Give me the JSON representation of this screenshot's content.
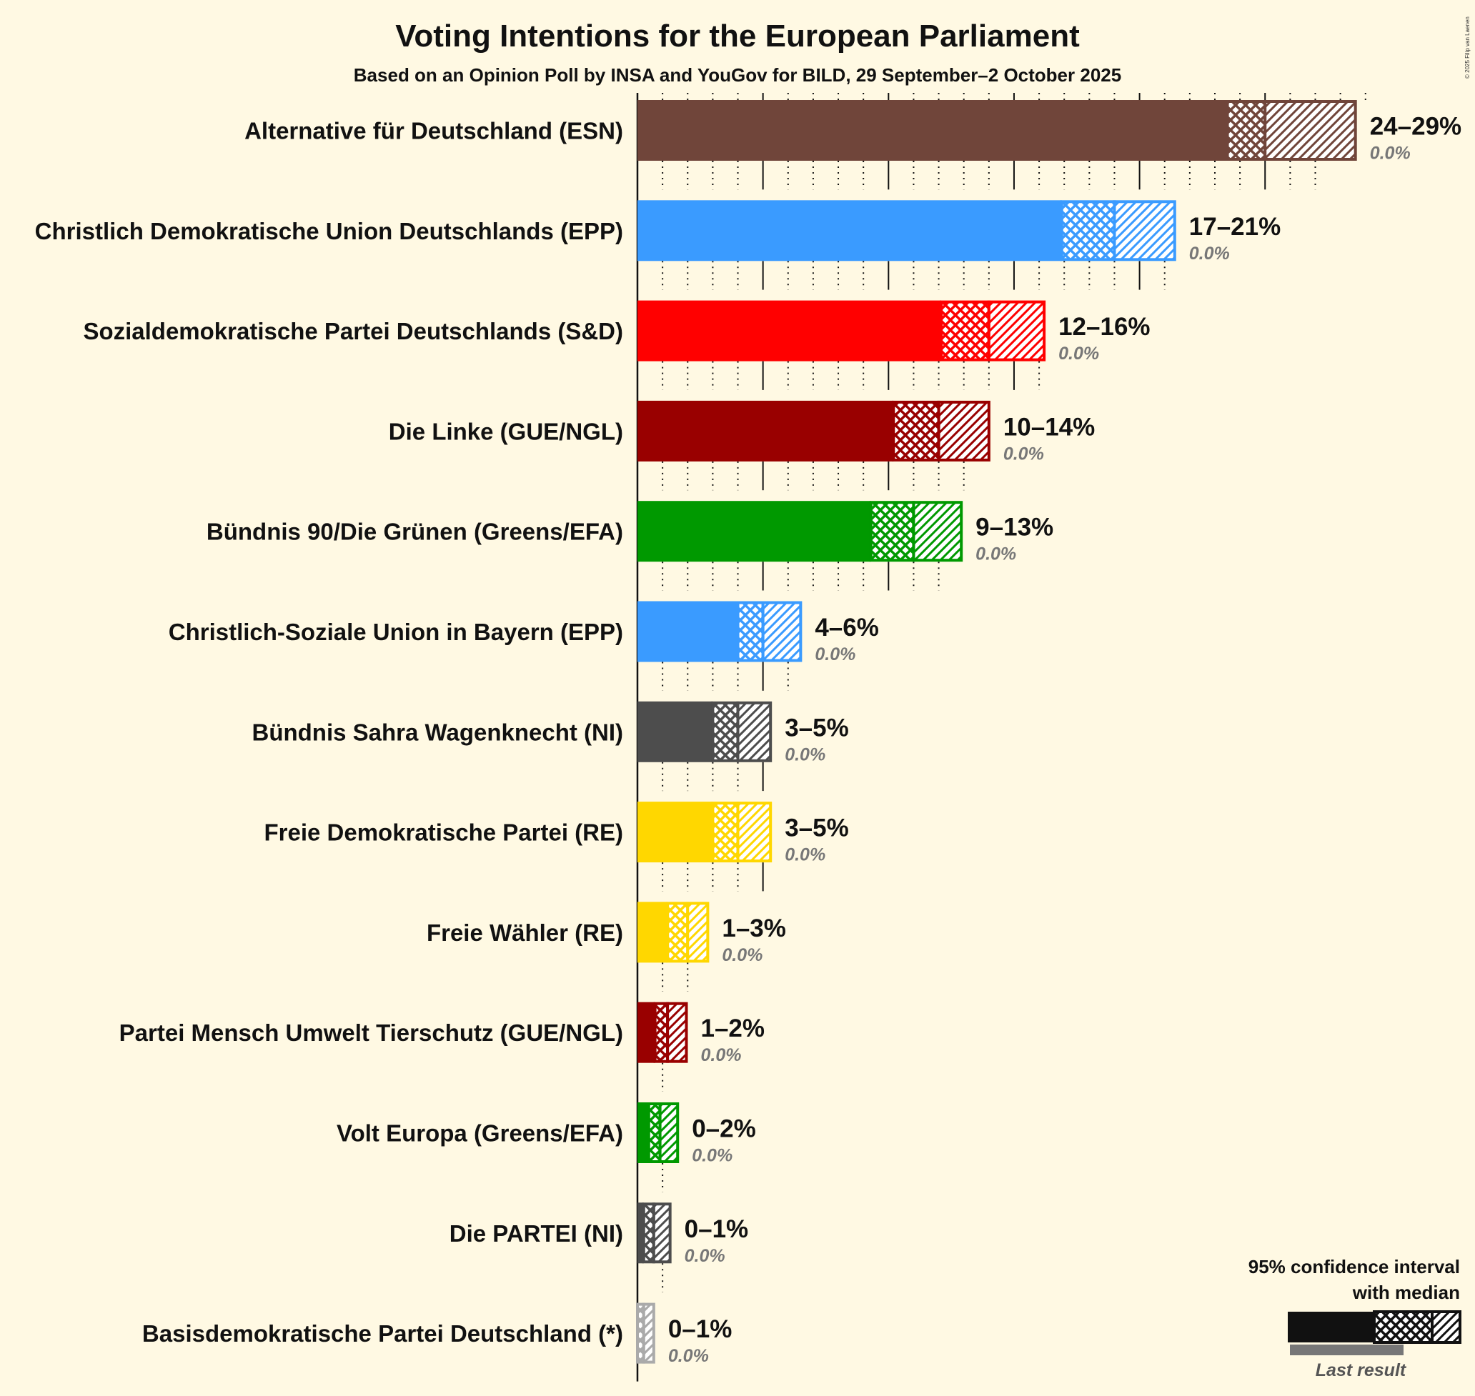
{
  "title": "Voting Intentions for the European Parliament",
  "subtitle": "Based on an Opinion Poll by INSA and YouGov for BILD, 29 September–2 October 2025",
  "copyright": "© 2025 Filip van Laenen",
  "legend": {
    "line1": "95% confidence interval",
    "line2": "with median",
    "last_result": "Last result"
  },
  "chart_data": {
    "type": "bar",
    "orientation": "horizontal",
    "title": "Voting Intentions for the European Parliament",
    "subtitle": "Based on an Opinion Poll by INSA and YouGov for BILD, 29 September–2 October 2025",
    "xlim": [
      0,
      30
    ],
    "grid": true,
    "legend_position": "bottom-right",
    "parties": [
      {
        "label": "Alternative für Deutschland (ESN)",
        "low": 23.5,
        "median": 25.0,
        "high": 28.6,
        "range_label": "24–29%",
        "last_label": "0.0%",
        "last": 0.0,
        "color": "#70453A",
        "dashes_to": 27.9
      },
      {
        "label": "Christlich Demokratische Union Deutschlands (EPP)",
        "low": 16.9,
        "median": 19.0,
        "high": 21.4,
        "range_label": "17–21%",
        "last_label": "0.0%",
        "last": 0.0,
        "color": "#3A9BFF",
        "dashes_to": 21.1
      },
      {
        "label": "Sozialdemokratische Partei Deutschlands (S&D)",
        "low": 12.1,
        "median": 14.0,
        "high": 16.2,
        "range_label": "12–16%",
        "last_label": "0.0%",
        "last": 0.0,
        "color": "#FF0000",
        "dashes_to": 16.1
      },
      {
        "label": "Die Linke (GUE/NGL)",
        "low": 10.2,
        "median": 12.0,
        "high": 14.0,
        "range_label": "10–14%",
        "last_label": "0.0%",
        "last": 0.0,
        "color": "#990000",
        "dashes_to": 13.1
      },
      {
        "label": "Bündnis 90/Die Grünen (Greens/EFA)",
        "low": 9.3,
        "median": 11.0,
        "high": 12.9,
        "range_label": "9–13%",
        "last_label": "0.0%",
        "last": 0.0,
        "color": "#009900",
        "dashes_to": 12.1
      },
      {
        "label": "Christlich-Soziale Union in Bayern (EPP)",
        "low": 4.0,
        "median": 5.0,
        "high": 6.5,
        "range_label": "4–6%",
        "last_label": "0.0%",
        "last": 0.0,
        "color": "#3A9BFF",
        "dashes_to": 6.1
      },
      {
        "label": "Bündnis Sahra Wagenknecht (NI)",
        "low": 3.0,
        "median": 4.0,
        "high": 5.3,
        "range_label": "3–5%",
        "last_label": "0.0%",
        "last": 0.0,
        "color": "#4D4D4D",
        "dashes_to": 5.1
      },
      {
        "label": "Freie Demokratische Partei (RE)",
        "low": 3.0,
        "median": 4.0,
        "high": 5.3,
        "range_label": "3–5%",
        "last_label": "0.0%",
        "last": 0.0,
        "color": "#FFD700",
        "dashes_to": 5.1
      },
      {
        "label": "Freie Wähler (RE)",
        "low": 1.2,
        "median": 2.0,
        "high": 2.8,
        "range_label": "1–3%",
        "last_label": "0.0%",
        "last": 0.0,
        "color": "#FFD700",
        "dashes_to": 2.1
      },
      {
        "label": "Partei Mensch Umwelt Tierschutz (GUE/NGL)",
        "low": 0.7,
        "median": 1.2,
        "high": 1.95,
        "range_label": "1–2%",
        "last_label": "0.0%",
        "last": 0.0,
        "color": "#990000",
        "dashes_to": 1.1
      },
      {
        "label": "Volt Europa (Greens/EFA)",
        "low": 0.45,
        "median": 0.9,
        "high": 1.6,
        "range_label": "0–2%",
        "last_label": "0.0%",
        "last": 0.0,
        "color": "#009900",
        "dashes_to": 1.1
      },
      {
        "label": "Die PARTEI (NI)",
        "low": 0.25,
        "median": 0.65,
        "high": 1.3,
        "range_label": "0–1%",
        "last_label": "0.0%",
        "last": 0.0,
        "color": "#4D4D4D",
        "dashes_to": 1.1
      },
      {
        "label": "Basisdemokratische Partei Deutschland (*)",
        "low": 0.0,
        "median": 0.25,
        "high": 0.65,
        "range_label": "0–1%",
        "last_label": "0.0%",
        "last": 0.0,
        "color": "#AAAAAA",
        "dashes_to": 0.5
      }
    ]
  }
}
